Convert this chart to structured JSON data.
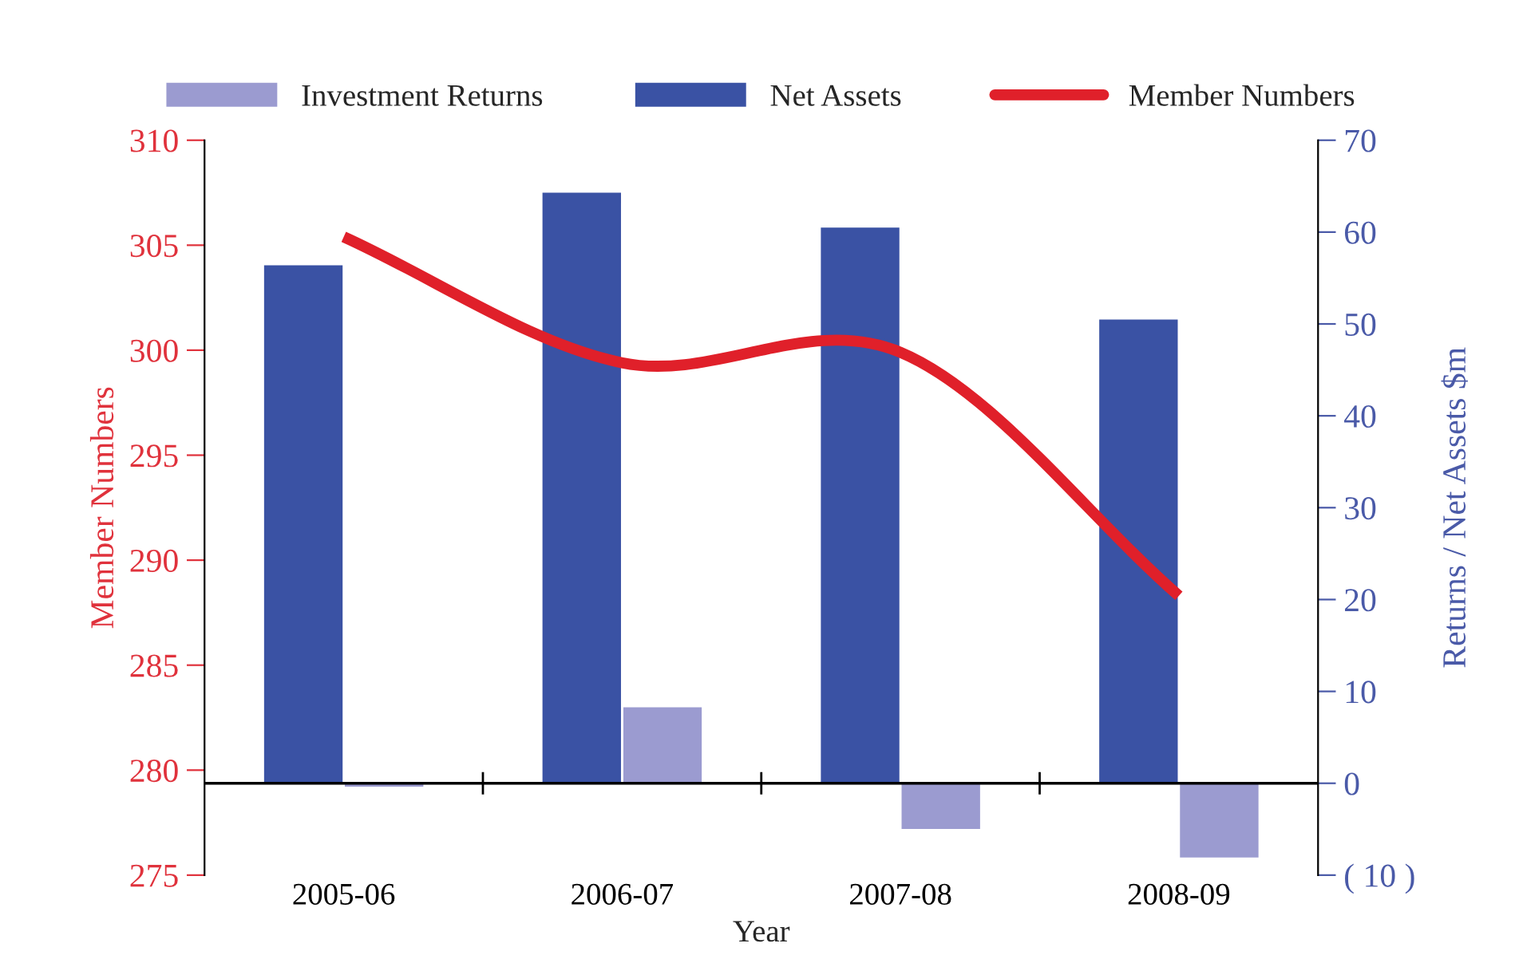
{
  "chart_data": {
    "type": "bar",
    "xlabel": "Year",
    "ylabel": "Member Numbers",
    "y2label": "Returns / Net Assets $m",
    "categories": [
      "2005-06",
      "2006-07",
      "2007-08",
      "2008-09"
    ],
    "series": [
      {
        "name": "Investment Returns",
        "color": "#9b9bd0",
        "axis": "y2",
        "values": [
          -0.5,
          8.4,
          -5.1,
          -8.2
        ]
      },
      {
        "name": "Net Assets",
        "color": "#3a52a4",
        "axis": "y2",
        "values": [
          56.5,
          64.4,
          60.6,
          50.6
        ]
      },
      {
        "name": "Member Numbers",
        "color": "#e0202a",
        "type": "line",
        "values": [
          305.4,
          299.4,
          299.9,
          288.3
        ]
      }
    ],
    "ylim": [
      275,
      310
    ],
    "yticks": [
      275,
      280,
      285,
      290,
      295,
      300,
      305,
      310
    ],
    "y2lim": [
      -10,
      70
    ],
    "y2ticks": [
      {
        "value": -10,
        "label": "( 10 )"
      },
      0,
      10,
      20,
      30,
      40,
      50,
      60,
      70
    ],
    "ref_lines": [
      {
        "axis": "y2",
        "value": 0,
        "color": "#000000"
      }
    ],
    "grid": false,
    "legend": "top"
  }
}
